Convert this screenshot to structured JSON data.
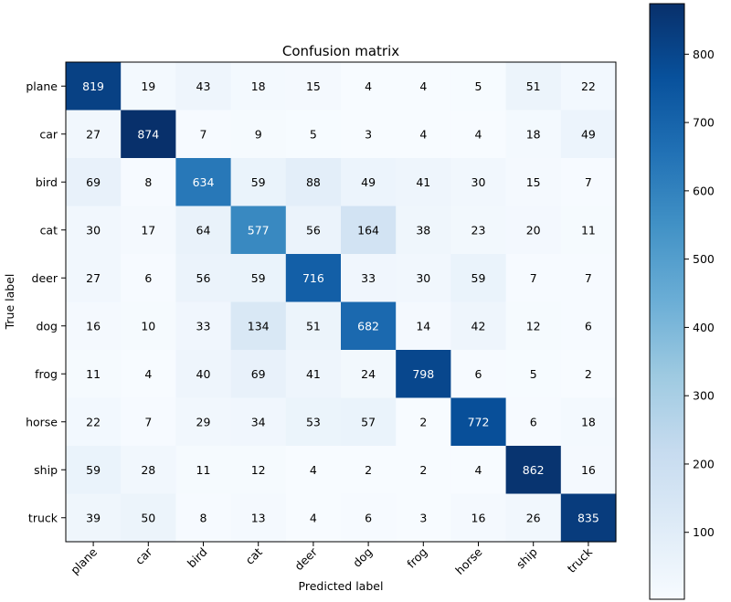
{
  "chart_data": {
    "type": "heatmap",
    "title": "Confusion matrix",
    "xlabel": "Predicted label",
    "ylabel": "True label",
    "x_categories": [
      "plane",
      "car",
      "bird",
      "cat",
      "deer",
      "dog",
      "frog",
      "horse",
      "ship",
      "truck"
    ],
    "y_categories": [
      "plane",
      "car",
      "bird",
      "cat",
      "deer",
      "dog",
      "frog",
      "horse",
      "ship",
      "truck"
    ],
    "values": [
      [
        819,
        19,
        43,
        18,
        15,
        4,
        4,
        5,
        51,
        22
      ],
      [
        27,
        874,
        7,
        9,
        5,
        3,
        4,
        4,
        18,
        49
      ],
      [
        69,
        8,
        634,
        59,
        88,
        49,
        41,
        30,
        15,
        7
      ],
      [
        30,
        17,
        64,
        577,
        56,
        164,
        38,
        23,
        20,
        11
      ],
      [
        27,
        6,
        56,
        59,
        716,
        33,
        30,
        59,
        7,
        7
      ],
      [
        16,
        10,
        33,
        134,
        51,
        682,
        14,
        42,
        12,
        6
      ],
      [
        11,
        4,
        40,
        69,
        41,
        24,
        798,
        6,
        5,
        2
      ],
      [
        22,
        7,
        29,
        34,
        53,
        57,
        2,
        772,
        6,
        18
      ],
      [
        59,
        28,
        11,
        12,
        4,
        2,
        2,
        4,
        862,
        16
      ],
      [
        39,
        50,
        8,
        13,
        4,
        6,
        3,
        16,
        26,
        835
      ]
    ],
    "colorbar": {
      "ticks": [
        100,
        200,
        300,
        400,
        500,
        600,
        700,
        800
      ],
      "vmin": 2,
      "vmax": 874,
      "colormap": "Blues"
    },
    "x_tick_rotation": 45,
    "grid": false
  }
}
